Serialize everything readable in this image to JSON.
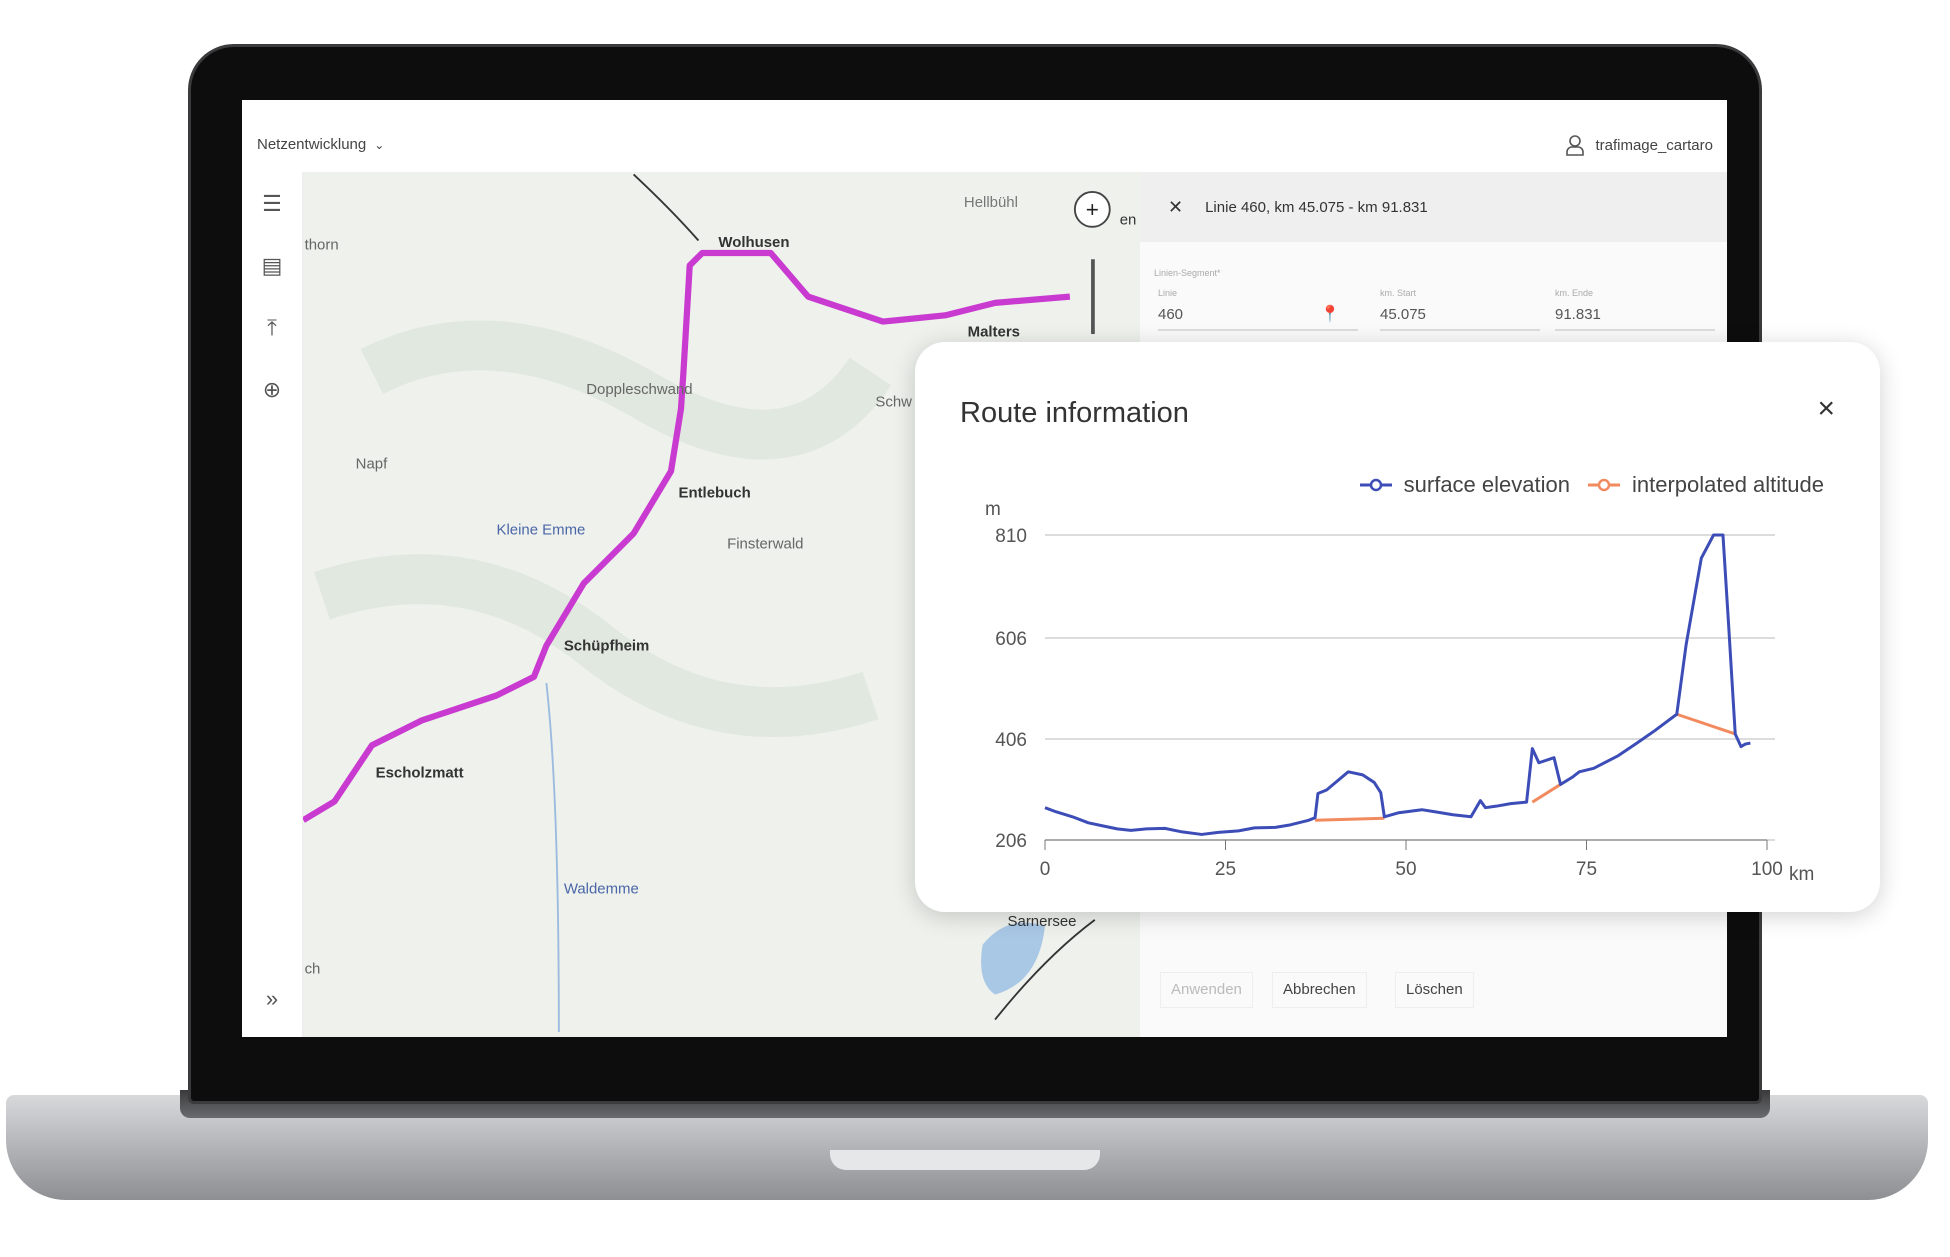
{
  "topbar": {
    "project": "Netzentwicklung",
    "user": "trafimage_cartaro"
  },
  "map": {
    "labels": [
      "Wolhusen",
      "Malters",
      "Hellbühl",
      "Doppleschwand",
      "Napf",
      "Entlebuch",
      "Kleine Emme",
      "Finsterwald",
      "Schüpfheim",
      "Escholzmatt",
      "Waldemme",
      "Sarnersee",
      "thorn",
      "Schw",
      "en",
      "ch"
    ],
    "route_color": "#c93bd0"
  },
  "panel": {
    "header": "Linie 460, km 45.075 - km 91.831",
    "section": "Linien-Segment*",
    "fields": [
      {
        "label": "Linie",
        "value": "460"
      },
      {
        "label": "km. Start",
        "value": "45.075"
      },
      {
        "label": "km. Ende",
        "value": "91.831"
      }
    ],
    "buttons": [
      "Anwenden",
      "Abbrechen",
      "Löschen"
    ]
  },
  "popup": {
    "title": "Route information",
    "close": "×"
  },
  "chart_data": {
    "type": "line",
    "title": "",
    "xlabel": "km",
    "ylabel": "m",
    "xlim": [
      0,
      100
    ],
    "ylim": [
      206,
      810
    ],
    "xticks": [
      0,
      25,
      50,
      75,
      100
    ],
    "yticks": [
      206,
      406,
      606,
      810
    ],
    "grid": true,
    "legend": "top-right",
    "series": [
      {
        "name": "surface elevation",
        "color": "#3d4db7",
        "points": [
          [
            0,
            270
          ],
          [
            1.5,
            262
          ],
          [
            3.8,
            252
          ],
          [
            6,
            240
          ],
          [
            8,
            234
          ],
          [
            10,
            228
          ],
          [
            11.9,
            225
          ],
          [
            14,
            228
          ],
          [
            16.6,
            229
          ],
          [
            19,
            222
          ],
          [
            21.7,
            217
          ],
          [
            24,
            221
          ],
          [
            26.8,
            224
          ],
          [
            29,
            230
          ],
          [
            31.9,
            231
          ],
          [
            34,
            236
          ],
          [
            36.5,
            245
          ],
          [
            37.4,
            250
          ],
          [
            37.8,
            298
          ],
          [
            39,
            305
          ],
          [
            42,
            341
          ],
          [
            44,
            335
          ],
          [
            45.6,
            320
          ],
          [
            46.5,
            300
          ],
          [
            47,
            252
          ],
          [
            49,
            260
          ],
          [
            52.2,
            266
          ],
          [
            54,
            262
          ],
          [
            56.5,
            256
          ],
          [
            59,
            252
          ],
          [
            60.3,
            284
          ],
          [
            61,
            270
          ],
          [
            62.5,
            273
          ],
          [
            64.5,
            278
          ],
          [
            66.7,
            281
          ],
          [
            67.5,
            387
          ],
          [
            68.4,
            359
          ],
          [
            70.5,
            369
          ],
          [
            71.4,
            316
          ],
          [
            73,
            330
          ],
          [
            74,
            341
          ],
          [
            76,
            348
          ],
          [
            79.4,
            373
          ],
          [
            82,
            398
          ],
          [
            84.5,
            423
          ],
          [
            87.5,
            455
          ],
          [
            88.8,
            593
          ],
          [
            90.9,
            764
          ],
          [
            92.6,
            810
          ],
          [
            93.9,
            810
          ],
          [
            94.7,
            628
          ],
          [
            95.6,
            416
          ],
          [
            96.4,
            391
          ],
          [
            97,
            396
          ],
          [
            97.7,
            398
          ]
        ]
      },
      {
        "name": "interpolated altitude",
        "color": "#f28a5f",
        "segments": [
          [
            [
              37.4,
              245
            ],
            [
              47,
              249
            ]
          ],
          [
            [
              67.5,
              281
            ],
            [
              71.4,
              316
            ]
          ],
          [
            [
              87.5,
              455
            ],
            [
              95.6,
              416
            ]
          ]
        ]
      }
    ]
  }
}
